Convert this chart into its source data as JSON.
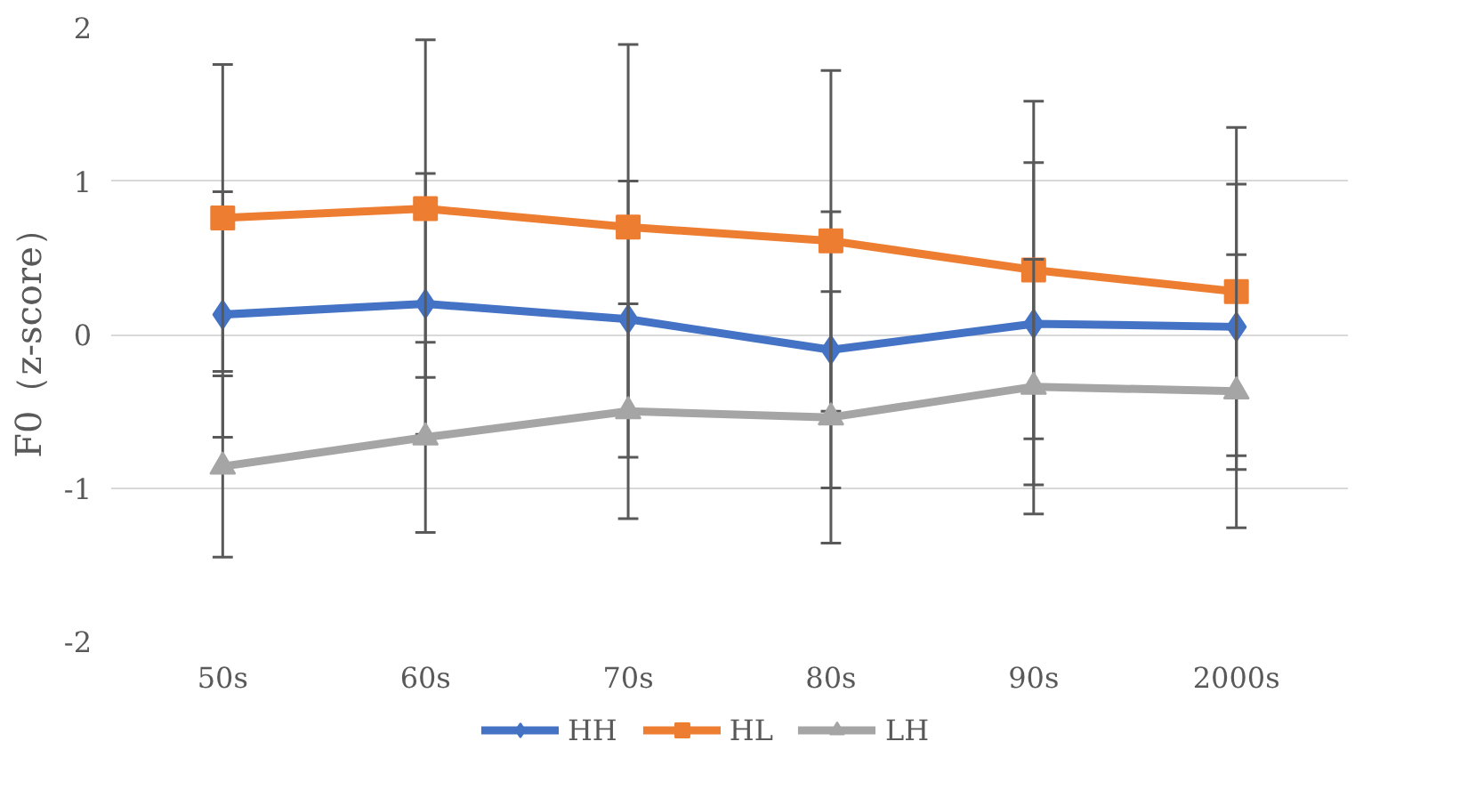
{
  "chart_data": {
    "type": "line",
    "ylabel": "F0（z-score）",
    "categories": [
      "50s",
      "60s",
      "70s",
      "80s",
      "90s",
      "2000s"
    ],
    "series": [
      {
        "name": "HH",
        "color": "#4472c4",
        "marker": "diamond",
        "values": [
          0.13,
          0.2,
          0.1,
          -0.1,
          0.07,
          0.05
        ],
        "errors": [
          0.8,
          0.85,
          0.9,
          0.9,
          1.05,
          0.93
        ]
      },
      {
        "name": "HL",
        "color": "#ed7d31",
        "marker": "square",
        "values": [
          0.76,
          0.82,
          0.7,
          0.61,
          0.42,
          0.28
        ],
        "errors": [
          1.0,
          1.1,
          1.19,
          1.11,
          1.1,
          1.07
        ]
      },
      {
        "name": "LH",
        "color": "#a5a5a5",
        "marker": "triangle",
        "values": [
          -0.86,
          -0.67,
          -0.5,
          -0.54,
          -0.34,
          -0.37
        ],
        "errors": [
          0.59,
          0.62,
          0.7,
          0.82,
          0.83,
          0.89
        ]
      }
    ],
    "ylim": [
      -2,
      2
    ],
    "yticks": [
      {
        "value": -2,
        "label": "-2"
      },
      {
        "value": -1,
        "label": "-1"
      },
      0,
      1,
      2
    ],
    "grid": "y",
    "legend": "bottom"
  }
}
